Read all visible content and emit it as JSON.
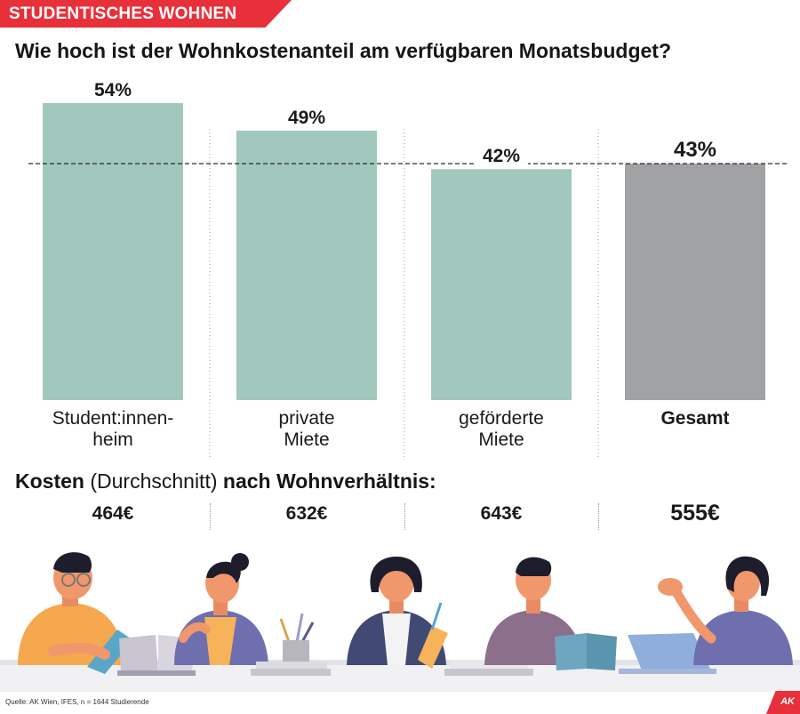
{
  "header": {
    "tag": "STUDENTISCHES WOHNEN"
  },
  "question": "Wie hoch ist der Wohnkostenanteil am verfügbaren Monatsbudget?",
  "colors": {
    "bar": "#a2c8bd",
    "bar_total": "#a1a2a4",
    "accent": "#e8303a"
  },
  "chart_data": {
    "type": "bar",
    "title": "Wie hoch ist der Wohnkostenanteil am verfügbaren Monatsbudget?",
    "categories": [
      "Student:innen-\nheim",
      "private\nMiete",
      "geförderte\nMiete",
      "Gesamt"
    ],
    "values": [
      54,
      49,
      42,
      43
    ],
    "value_labels": [
      "54%",
      "49%",
      "42%",
      "43%"
    ],
    "highlight": "Gesamt",
    "reference_line": 43,
    "ylim": [
      0,
      54
    ],
    "unit": "%",
    "grid": false
  },
  "costs": {
    "heading_bold_1": "Kosten",
    "heading_normal": "(Durchschnitt)",
    "heading_bold_2": "nach Wohnverhältnis:",
    "values": [
      "464€",
      "632€",
      "643€",
      "555€"
    ]
  },
  "illustration": {
    "description_icon": "students-studying-illustration"
  },
  "footer": {
    "source": "Quelle: AK Wien, IFES, n = 1644 Studierende",
    "logo": "AK"
  }
}
